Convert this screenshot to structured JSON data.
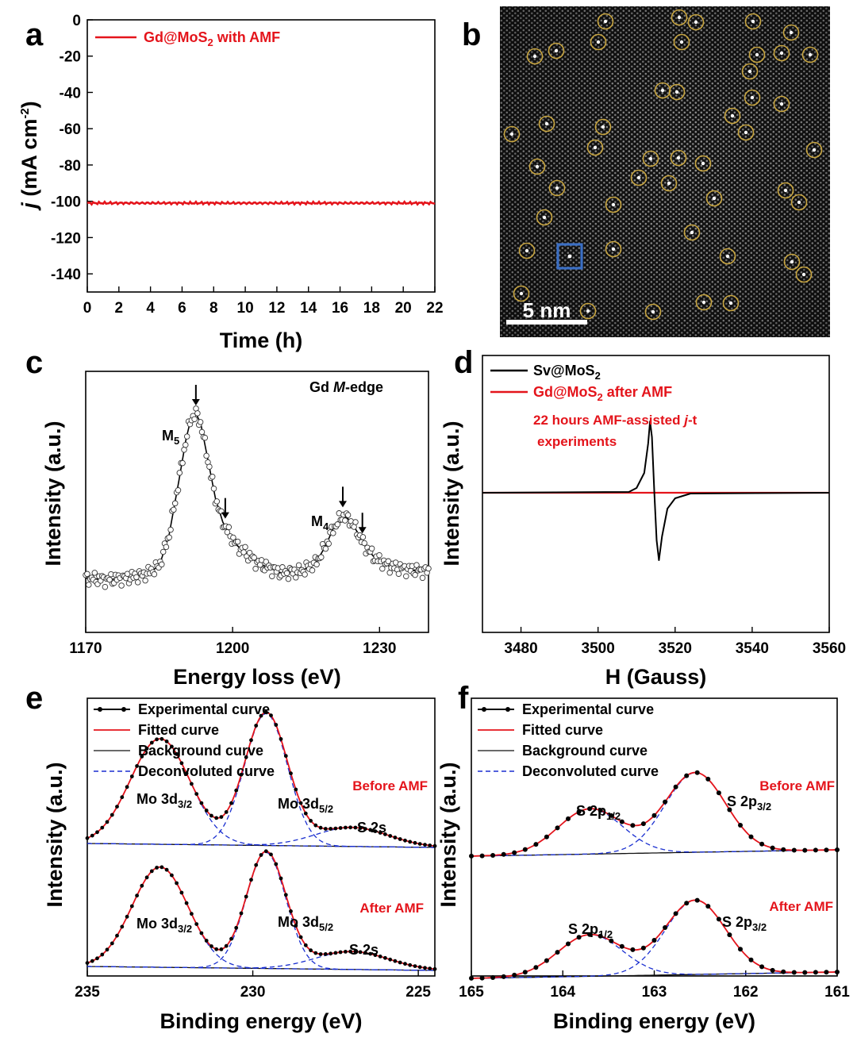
{
  "panel_labels": [
    "a",
    "b",
    "c",
    "d",
    "e",
    "f"
  ],
  "colors": {
    "red": "#e4141b",
    "black": "#000000",
    "blue": "#1a2fd0",
    "circle": "#c9a640",
    "marker": "#3b6fc4"
  },
  "panel_b": {
    "scale_bar_label": "5 nm"
  },
  "chart_data": [
    {
      "panel": "a",
      "type": "line",
      "xlabel": "Time (h)",
      "ylabel": "j (mA cm-2)",
      "xlim": [
        0,
        22
      ],
      "ylim": [
        -150,
        0
      ],
      "xticks": [
        0,
        2,
        4,
        6,
        8,
        10,
        12,
        14,
        16,
        18,
        20,
        22
      ],
      "yticks": [
        0,
        -20,
        -40,
        -60,
        -80,
        -100,
        -120,
        -140
      ],
      "series": [
        {
          "name": "Gd@MoS2 with AMF",
          "legend_main": "Gd@MoS",
          "legend_sub": "2",
          "legend_tail": " with AMF",
          "color": "#e4141b",
          "x": [
            0,
            22
          ],
          "y": [
            -101,
            -101
          ]
        }
      ]
    },
    {
      "panel": "c",
      "type": "scatter",
      "xlabel": "Energy loss (eV)",
      "ylabel": "Intensity (a.u.)",
      "xlim": [
        1170,
        1240
      ],
      "xticks": [
        1170,
        1200,
        1230
      ],
      "title": "Gd M-edge",
      "title_main": "Gd ",
      "title_italic": "M",
      "title_tail": "-edge",
      "peaks": [
        {
          "label": "M5",
          "main": "M",
          "sub": "5",
          "x": 1192.5
        },
        {
          "label": "M4",
          "main": "M",
          "sub": "4",
          "x": 1222.5
        }
      ],
      "arrows_x": [
        1192.5,
        1198.5,
        1222.5,
        1226.5
      ],
      "x": [
        1170,
        1174,
        1178,
        1182,
        1185,
        1187,
        1189,
        1190.5,
        1191.5,
        1192.5,
        1193.5,
        1195,
        1196.5,
        1198,
        1199.5,
        1201,
        1205,
        1210,
        1214,
        1217,
        1219,
        1220.5,
        1222,
        1222.5,
        1224,
        1225.5,
        1227,
        1229,
        1232,
        1236,
        1240
      ],
      "y": [
        0.03,
        0.02,
        0.03,
        0.05,
        0.1,
        0.28,
        0.6,
        0.85,
        0.97,
        1.0,
        0.94,
        0.72,
        0.5,
        0.36,
        0.28,
        0.22,
        0.12,
        0.06,
        0.07,
        0.12,
        0.22,
        0.32,
        0.38,
        0.4,
        0.37,
        0.3,
        0.22,
        0.15,
        0.1,
        0.08,
        0.07
      ]
    },
    {
      "panel": "d",
      "type": "line",
      "xlabel": "H (Gauss)",
      "ylabel": "Intensity (a.u.)",
      "xlim": [
        3470,
        3560
      ],
      "xticks": [
        3480,
        3500,
        3520,
        3540,
        3560
      ],
      "series": [
        {
          "name": "Sv@MoS2",
          "legend_main": "Sv@MoS",
          "legend_sub": "2",
          "legend_tail": "",
          "color": "#000000",
          "x": [
            3470,
            3508,
            3510,
            3512,
            3513,
            3513.5,
            3514,
            3514.6,
            3515.2,
            3515.8,
            3516.6,
            3518,
            3520,
            3524,
            3560
          ],
          "y": [
            0,
            0.01,
            0.06,
            0.25,
            0.62,
            0.9,
            0.7,
            0.0,
            -0.6,
            -0.85,
            -0.55,
            -0.2,
            -0.07,
            -0.01,
            0
          ]
        },
        {
          "name": "Gd@MoS2 after AMF",
          "legend_main": "Gd@MoS",
          "legend_sub": "2",
          "legend_tail": " after AMF",
          "color": "#e4141b",
          "x": [
            3470,
            3560
          ],
          "y": [
            0,
            0
          ]
        }
      ],
      "annotation": [
        "22 hours AMF-assisted j-t",
        "experiments"
      ],
      "annotation_pre": "22 hours AMF-assisted ",
      "annotation_italic": "j",
      "annotation_tail": "-t"
    },
    {
      "panel": "e",
      "type": "line",
      "xlabel": "Binding energy (eV)",
      "ylabel": "Intensity (a.u.)",
      "xlim": [
        235,
        224.5
      ],
      "xticks": [
        235,
        230,
        225
      ],
      "legend": [
        "Experimental curve",
        "Fitted curve",
        "Background curve",
        "Deconvoluted curve"
      ],
      "spectra": [
        {
          "label": "Before AMF",
          "peaks": [
            {
              "center": 232.8,
              "height": 1.0,
              "width": 0.9
            },
            {
              "center": 229.6,
              "height": 1.25,
              "width": 0.65
            },
            {
              "center": 227.0,
              "height": 0.18,
              "width": 1.1
            }
          ],
          "peak_labels": [
            {
              "text": "Mo 3d3/2",
              "main": "Mo 3d",
              "sub": "3/2"
            },
            {
              "text": "Mo 3d5/2",
              "main": "Mo 3d",
              "sub": "5/2"
            },
            {
              "text": "S 2s",
              "main": "S 2s",
              "sub": ""
            }
          ]
        },
        {
          "label": "After AMF",
          "peaks": [
            {
              "center": 232.8,
              "height": 0.95,
              "width": 0.85
            },
            {
              "center": 229.6,
              "height": 1.1,
              "width": 0.6
            },
            {
              "center": 227.0,
              "height": 0.17,
              "width": 1.1
            }
          ],
          "peak_labels": [
            {
              "text": "Mo 3d3/2",
              "main": "Mo 3d",
              "sub": "3/2"
            },
            {
              "text": "Mo 3d5/2",
              "main": "Mo 3d",
              "sub": "5/2"
            },
            {
              "text": "S 2s",
              "main": "S 2s",
              "sub": ""
            }
          ]
        }
      ]
    },
    {
      "panel": "f",
      "type": "line",
      "xlabel": "Binding energy (eV)",
      "ylabel": "Intensity (a.u.)",
      "xlim": [
        165,
        161
      ],
      "xticks": [
        165,
        164,
        163,
        162,
        161
      ],
      "legend": [
        "Experimental curve",
        "Fitted curve",
        "Background curve",
        "Deconvoluted curve"
      ],
      "spectra": [
        {
          "label": "Before AMF",
          "peaks": [
            {
              "center": 163.7,
              "height": 0.5,
              "width": 0.35
            },
            {
              "center": 162.55,
              "height": 0.88,
              "width": 0.33
            }
          ],
          "peak_labels": [
            {
              "text": "S 2p1/2",
              "main": "S 2p",
              "sub": "1/2"
            },
            {
              "text": "S 2p3/2",
              "main": "S 2p",
              "sub": "3/2"
            }
          ]
        },
        {
          "label": "After AMF",
          "peaks": [
            {
              "center": 163.7,
              "height": 0.46,
              "width": 0.35
            },
            {
              "center": 162.55,
              "height": 0.82,
              "width": 0.33
            }
          ],
          "peak_labels": [
            {
              "text": "S 2p1/2",
              "main": "S 2p",
              "sub": "1/2"
            },
            {
              "text": "S 2p3/2",
              "main": "S 2p",
              "sub": "3/2"
            }
          ]
        }
      ]
    }
  ]
}
